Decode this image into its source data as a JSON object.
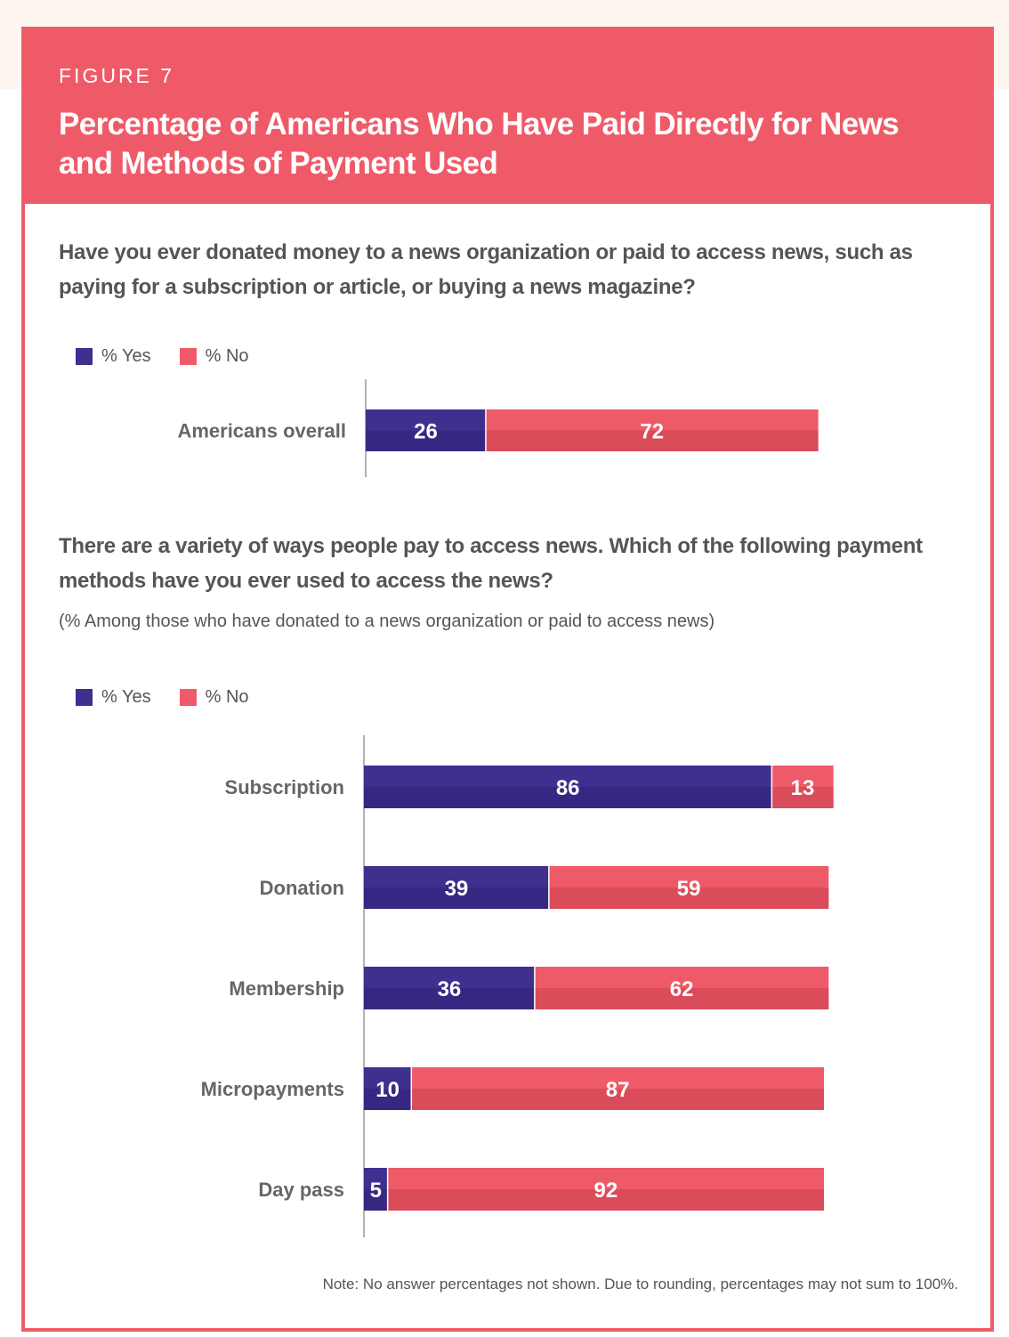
{
  "figure": {
    "label": "FIGURE 7",
    "title": "Percentage of Americans Who Have Paid Directly for News and Methods of Payment Used"
  },
  "colors": {
    "yes": "#3f2f8f",
    "no": "#ef5a68",
    "header": "#ef5a68",
    "text": "#555555"
  },
  "legend": {
    "yes_label": "% Yes",
    "no_label": "% No"
  },
  "footnote": "Note: No answer percentages not shown. Due to rounding, percentages may not sum to 100%.",
  "chart_data": [
    {
      "type": "bar",
      "orientation": "horizontal",
      "stacked": true,
      "title": "Have you ever donated money to a news organization or paid to access news, such as paying for a subscription or article, or buying a news magazine?",
      "categories": [
        "Americans overall"
      ],
      "series": [
        {
          "name": "% Yes",
          "values": [
            26
          ]
        },
        {
          "name": "% No",
          "values": [
            72
          ]
        }
      ],
      "xlim": [
        0,
        100
      ],
      "grid": false,
      "legend": "top-left"
    },
    {
      "type": "bar",
      "orientation": "horizontal",
      "stacked": true,
      "title": "There are a variety of ways people pay to access news. Which of the following payment methods have you ever used to access the news?",
      "subtitle": "(% Among those who have donated to a news organization or paid to access news)",
      "categories": [
        "Subscription",
        "Donation",
        "Membership",
        "Micropayments",
        "Day pass"
      ],
      "series": [
        {
          "name": "% Yes",
          "values": [
            86,
            39,
            36,
            10,
            5
          ]
        },
        {
          "name": "% No",
          "values": [
            13,
            59,
            62,
            87,
            92
          ]
        }
      ],
      "xlim": [
        0,
        100
      ],
      "grid": false,
      "legend": "top-left"
    }
  ]
}
